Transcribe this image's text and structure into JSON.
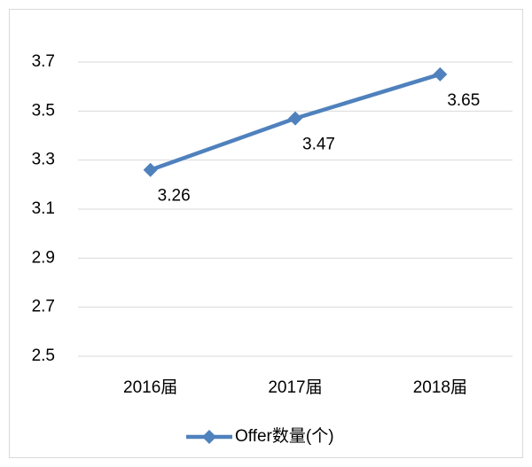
{
  "chart_data": {
    "type": "line",
    "categories": [
      "2016届",
      "2017届",
      "2018届"
    ],
    "series": [
      {
        "name": "Offer数量(个)",
        "color": "#4f81bd",
        "values": [
          3.26,
          3.47,
          3.65
        ]
      }
    ],
    "ylim": [
      2.5,
      3.7
    ],
    "yticks": [
      2.5,
      2.7,
      2.9,
      3.1,
      3.3,
      3.5,
      3.7
    ],
    "grid": true,
    "legend": "bottom"
  }
}
